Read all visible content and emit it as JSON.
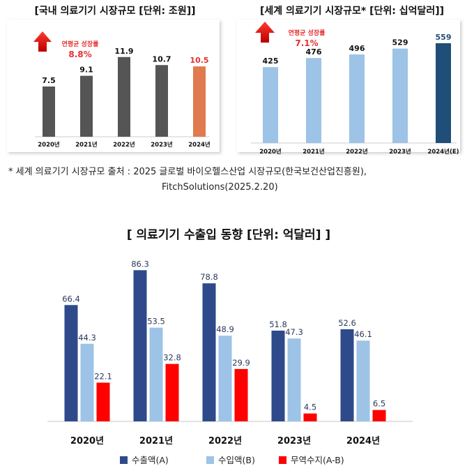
{
  "chart_data": [
    {
      "type": "bar",
      "title": "[국내 의료기기 시장규모 [단위: 조원]]",
      "annotation": {
        "label": "연평균 성장률",
        "value": "8.8%"
      },
      "categories": [
        "2020년",
        "2021년",
        "2022년",
        "2023년",
        "2024년"
      ],
      "values": [
        7.5,
        9.1,
        11.9,
        10.7,
        10.5
      ],
      "colors": [
        "#555555",
        "#555555",
        "#555555",
        "#555555",
        "#e07a4f"
      ],
      "label_colors": [
        "#111111",
        "#111111",
        "#111111",
        "#111111",
        "#e53030"
      ],
      "ylim": [
        0,
        12.5
      ]
    },
    {
      "type": "bar",
      "title": "[세계 의료기기 시장규모* [단위: 십억달러]]",
      "annotation": {
        "label": "연평균 성장률",
        "value": "7.1%"
      },
      "categories": [
        "2020년",
        "2021년",
        "2022년",
        "2023년",
        "2024년(E)"
      ],
      "values": [
        425,
        476,
        496,
        529,
        559
      ],
      "colors": [
        "#9dc3e6",
        "#9dc3e6",
        "#9dc3e6",
        "#9dc3e6",
        "#1f4e79"
      ],
      "label_colors": [
        "#111111",
        "#111111",
        "#111111",
        "#111111",
        "#1f4e79"
      ],
      "ylim": [
        0,
        590
      ]
    },
    {
      "type": "bar",
      "title": "[ 의료기기 수출입 동향 [단위: 억달러] ]",
      "categories": [
        "2020년",
        "2021년",
        "2022년",
        "2023년",
        "2024년"
      ],
      "series": [
        {
          "name": "수출액(A)",
          "color": "#2e4a8b",
          "values": [
            66.4,
            86.3,
            78.8,
            51.8,
            52.6
          ]
        },
        {
          "name": "수입액(B)",
          "color": "#9dc3e6",
          "values": [
            44.3,
            53.5,
            48.9,
            47.3,
            46.1
          ]
        },
        {
          "name": "무역수지(A-B)",
          "color": "#ff0000",
          "values": [
            22.1,
            32.8,
            29.9,
            4.5,
            6.5
          ]
        }
      ],
      "legend": "bottom",
      "ylim": [
        0,
        90
      ]
    }
  ],
  "footnote": {
    "line1": "* 세계 의료기기 시장규모 출처 : 2025 글로벌 바이오헬스산업 시장규모(한국보건산업진흥원),",
    "line2": "FitchSolutions(2025.2.20)"
  }
}
